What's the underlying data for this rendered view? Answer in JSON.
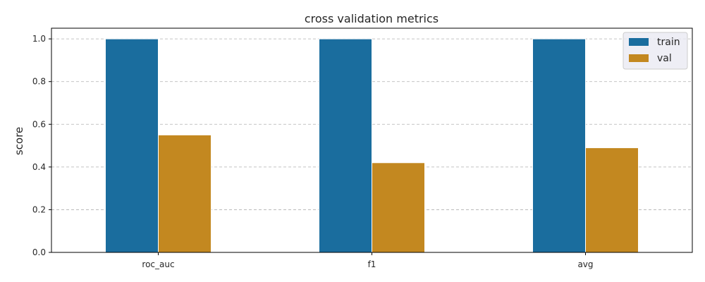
{
  "chart_data": {
    "type": "bar",
    "title": "cross validation metrics",
    "xlabel": "",
    "ylabel": "score",
    "categories": [
      "roc_auc",
      "f1",
      "avg"
    ],
    "series": [
      {
        "name": "train",
        "values": [
          1.0,
          1.0,
          1.0
        ],
        "color": "#1a6d9e"
      },
      {
        "name": "val",
        "values": [
          0.55,
          0.42,
          0.49
        ],
        "color": "#c38820"
      }
    ],
    "ylim": [
      0,
      1.05
    ],
    "yticks": [
      "0.0",
      "0.2",
      "0.4",
      "0.6",
      "0.8",
      "1.0"
    ],
    "grid": "horizontal-dashed",
    "legend_position": "top-right"
  }
}
